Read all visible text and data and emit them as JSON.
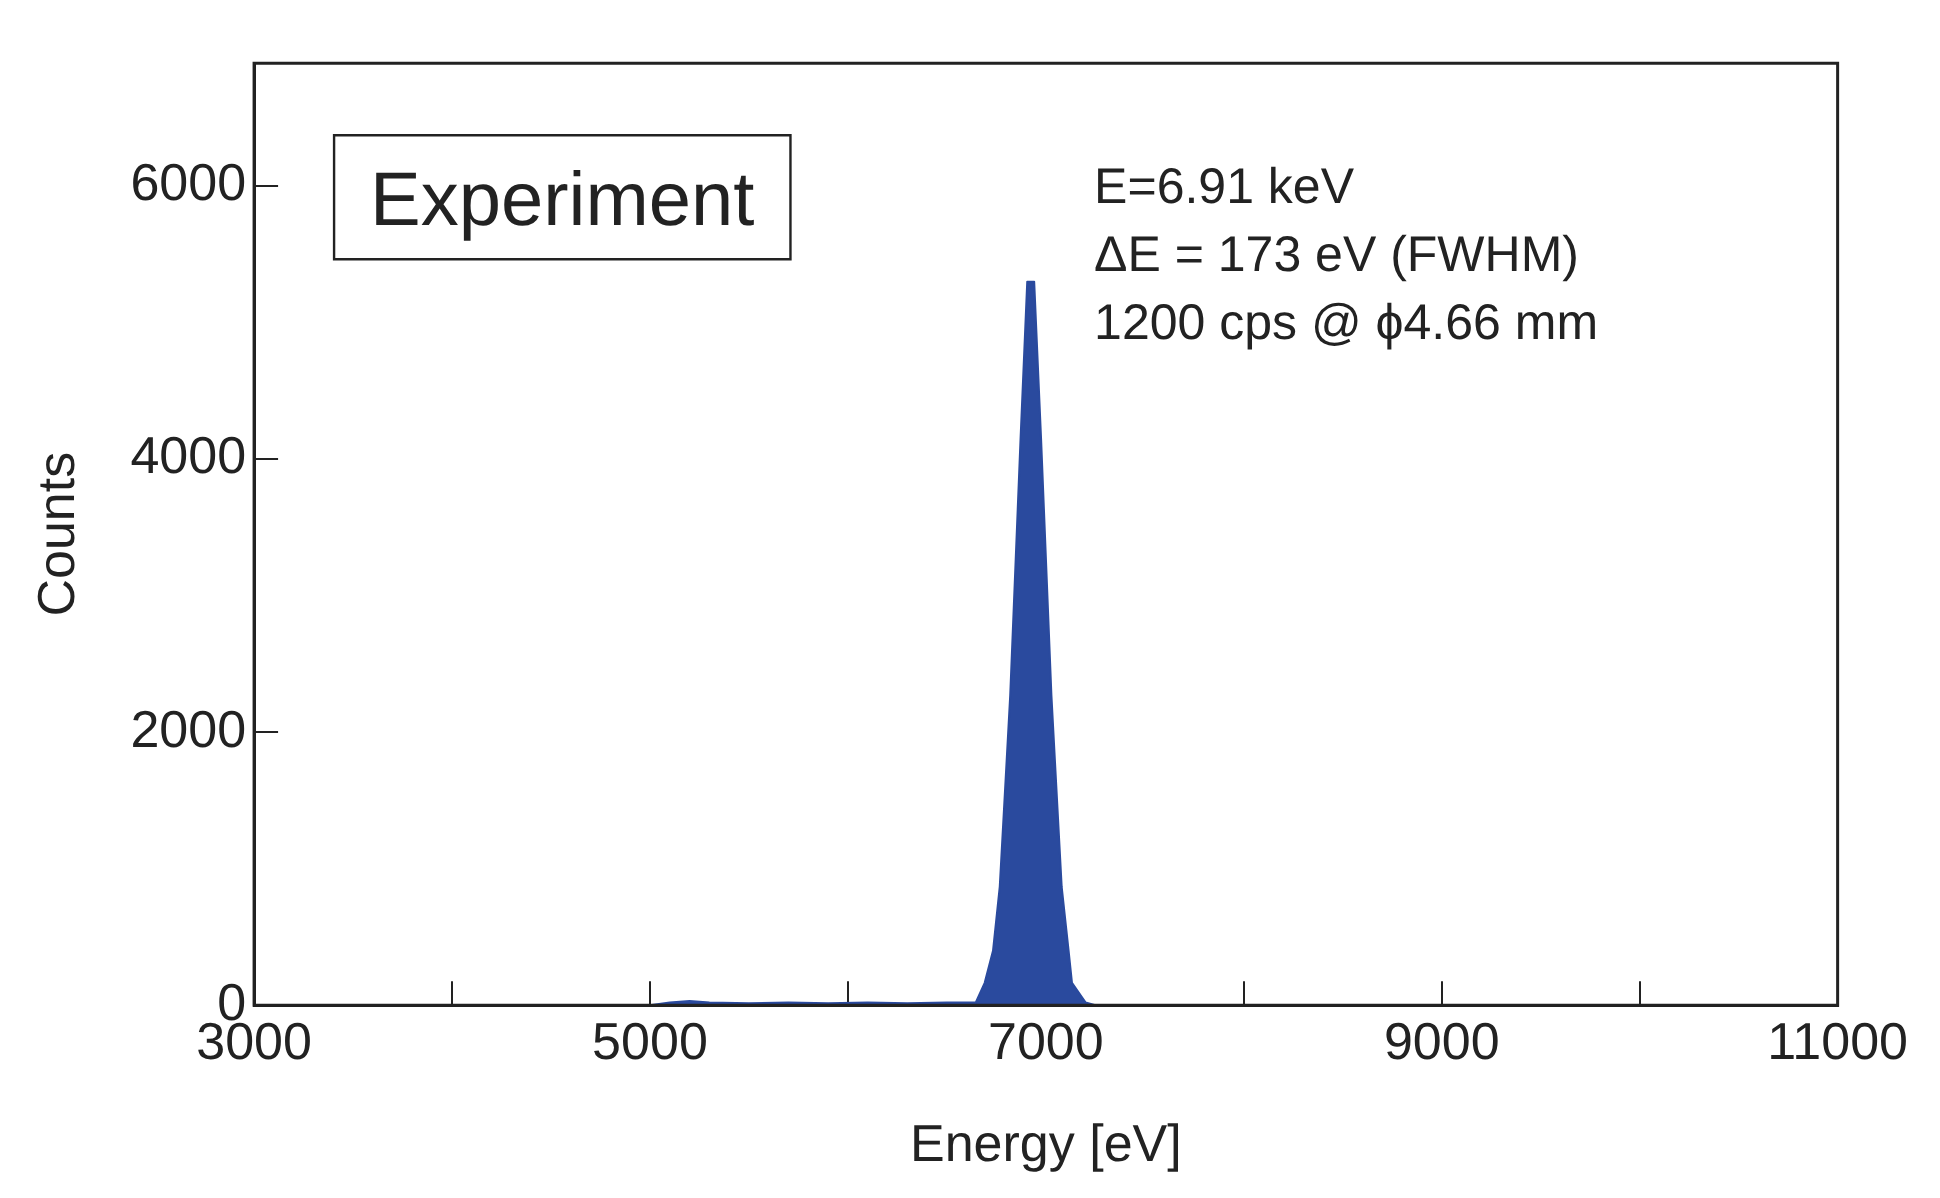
{
  "chart_data": {
    "type": "area",
    "xlabel": "Energy [eV]",
    "ylabel": "Counts",
    "annotations": [
      "Experiment",
      "E=6.91 keV",
      "ΔE = 173 eV (FWHM)",
      "1200 cps @ ϕ4.66 mm"
    ],
    "x": [
      3000,
      5000,
      5100,
      5200,
      5300,
      5500,
      5700,
      5900,
      6100,
      6300,
      6500,
      6600,
      6646,
      6691,
      6733,
      6767,
      6820,
      6872,
      6906,
      6941,
      6976,
      7028,
      7080,
      7115,
      7132,
      7201,
      7250,
      11000
    ],
    "series": [
      {
        "color": "#2a4a9e",
        "values": [
          0,
          0,
          20,
          30,
          20,
          15,
          20,
          15,
          20,
          15,
          20,
          20,
          20,
          164,
          398,
          866,
          2271,
          4143,
          5300,
          5300,
          4143,
          2271,
          866,
          398,
          164,
          20,
          0,
          0
        ]
      }
    ],
    "xlim": [
      3000,
      11000
    ],
    "ylim": [
      0,
      6900
    ],
    "xticks": [
      3000,
      {
        "value": 4000,
        "label": null
      },
      5000,
      {
        "value": 6000,
        "label": null
      },
      7000,
      {
        "value": 8000,
        "label": null
      },
      9000,
      {
        "value": 10000,
        "label": null
      },
      11000
    ],
    "yticks": [
      0,
      2000,
      4000,
      6000
    ],
    "grid": false,
    "legend": false
  }
}
